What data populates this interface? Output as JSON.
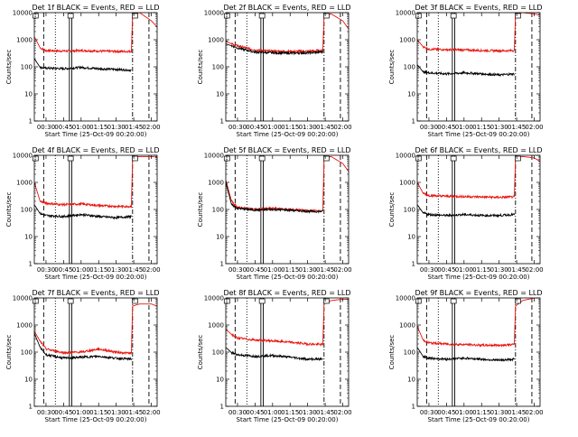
{
  "colors": {
    "events": "#000000",
    "lld": "#e8140e",
    "frame": "#000000"
  },
  "shared": {
    "ylabel": "Counts/sec",
    "xlabel": "Start Time (25-Oct-09 00:20:00)",
    "y_ticks": [
      {
        "value": 1,
        "label": "1"
      },
      {
        "value": 10,
        "label": "10"
      },
      {
        "value": 100,
        "label": "100"
      },
      {
        "value": 1000,
        "label": "1000"
      },
      {
        "value": 10000,
        "label": "10000"
      }
    ],
    "x_ticks": [
      "00:30",
      "00:45",
      "01:00",
      "01:15",
      "01:30",
      "01:45",
      "02:00"
    ]
  },
  "chart_data": [
    {
      "type": "line",
      "title": "Det 1f BLACK = Events, RED = LLD",
      "xlabel": "Start Time (25-Oct-09 00:20:00)",
      "ylabel": "Counts/sec",
      "ylim": [
        1,
        10000
      ],
      "yscale": "log",
      "xlim": [
        "00:20",
        "02:05"
      ],
      "x": [
        "00:20",
        "00:25",
        "00:30",
        "00:45",
        "01:00",
        "01:15",
        "01:30",
        "01:43",
        "01:44",
        "01:50",
        "02:00",
        "02:05"
      ],
      "series": [
        {
          "name": "RED = LLD",
          "values": [
            1300,
            500,
            400,
            380,
            400,
            380,
            370,
            370,
            9000,
            10000,
            5000,
            3000
          ]
        },
        {
          "name": "BLACK = Events",
          "values": [
            200,
            95,
            90,
            85,
            95,
            85,
            80,
            75,
            null,
            null,
            null,
            null
          ]
        }
      ]
    },
    {
      "type": "line",
      "title": "Det 2f BLACK = Events, RED = LLD",
      "xlabel": "Start Time (25-Oct-09 00:20:00)",
      "ylabel": "Counts/sec",
      "ylim": [
        1,
        10000
      ],
      "yscale": "log",
      "xlim": [
        "00:20",
        "02:05"
      ],
      "x": [
        "00:20",
        "00:25",
        "00:30",
        "00:45",
        "01:00",
        "01:15",
        "01:30",
        "01:43",
        "01:44",
        "01:50",
        "02:00",
        "02:05"
      ],
      "series": [
        {
          "name": "RED = LLD",
          "values": [
            900,
            700,
            600,
            420,
            380,
            370,
            380,
            400,
            8000,
            9000,
            5000,
            2500
          ]
        },
        {
          "name": "BLACK = Events",
          "values": [
            700,
            600,
            500,
            350,
            330,
            320,
            330,
            350,
            null,
            null,
            null,
            null
          ]
        }
      ]
    },
    {
      "type": "line",
      "title": "Det 3f BLACK = Events, RED = LLD",
      "xlabel": "Start Time (25-Oct-09 00:20:00)",
      "ylabel": "Counts/sec",
      "ylim": [
        1,
        10000
      ],
      "yscale": "log",
      "xlim": [
        "00:20",
        "02:05"
      ],
      "x": [
        "00:20",
        "00:25",
        "00:30",
        "00:45",
        "01:00",
        "01:15",
        "01:30",
        "01:43",
        "01:44",
        "01:50",
        "02:00",
        "02:05"
      ],
      "series": [
        {
          "name": "RED = LLD",
          "values": [
            1000,
            550,
            450,
            430,
            420,
            400,
            390,
            400,
            9000,
            10000,
            9000,
            8000
          ]
        },
        {
          "name": "BLACK = Events",
          "values": [
            120,
            65,
            60,
            55,
            60,
            55,
            50,
            55,
            null,
            null,
            null,
            null
          ]
        }
      ]
    },
    {
      "type": "line",
      "title": "Det 4f BLACK = Events, RED = LLD",
      "xlabel": "Start Time (25-Oct-09 00:20:00)",
      "ylabel": "Counts/sec",
      "ylim": [
        1,
        10000
      ],
      "yscale": "log",
      "xlim": [
        "00:20",
        "02:05"
      ],
      "x": [
        "00:20",
        "00:25",
        "00:30",
        "00:45",
        "01:00",
        "01:15",
        "01:30",
        "01:43",
        "01:44",
        "01:50",
        "02:00",
        "02:05"
      ],
      "series": [
        {
          "name": "RED = LLD",
          "values": [
            1000,
            200,
            170,
            150,
            160,
            140,
            130,
            130,
            8000,
            9000,
            9000,
            8500
          ]
        },
        {
          "name": "BLACK = Events",
          "values": [
            150,
            70,
            60,
            55,
            65,
            55,
            50,
            55,
            null,
            null,
            null,
            null
          ]
        }
      ]
    },
    {
      "type": "line",
      "title": "Det 5f BLACK = Events, RED = LLD",
      "xlabel": "Start Time (25-Oct-09 00:20:00)",
      "ylabel": "Counts/sec",
      "ylim": [
        1,
        10000
      ],
      "yscale": "log",
      "xlim": [
        "00:20",
        "02:05"
      ],
      "x": [
        "00:20",
        "00:25",
        "00:30",
        "00:45",
        "01:00",
        "01:15",
        "01:30",
        "01:43",
        "01:44",
        "01:50",
        "02:00",
        "02:05"
      ],
      "series": [
        {
          "name": "RED = LLD",
          "values": [
            1200,
            200,
            120,
            100,
            110,
            100,
            90,
            90,
            8000,
            9000,
            5000,
            2500
          ]
        },
        {
          "name": "BLACK = Events",
          "values": [
            1000,
            150,
            110,
            95,
            100,
            95,
            85,
            85,
            null,
            null,
            null,
            null
          ]
        }
      ]
    },
    {
      "type": "line",
      "title": "Det 6f BLACK = Events, RED = LLD",
      "xlabel": "Start Time (25-Oct-09 00:20:00)",
      "ylabel": "Counts/sec",
      "ylim": [
        1,
        10000
      ],
      "yscale": "log",
      "xlim": [
        "00:20",
        "02:05"
      ],
      "x": [
        "00:20",
        "00:25",
        "00:30",
        "00:45",
        "01:00",
        "01:15",
        "01:30",
        "01:43",
        "01:44",
        "01:50",
        "02:00",
        "02:05"
      ],
      "series": [
        {
          "name": "RED = LLD",
          "values": [
            1000,
            400,
            330,
            310,
            300,
            290,
            280,
            290,
            8000,
            9000,
            8000,
            6000
          ]
        },
        {
          "name": "BLACK = Events",
          "values": [
            150,
            75,
            65,
            60,
            65,
            60,
            60,
            65,
            null,
            null,
            null,
            null
          ]
        }
      ]
    },
    {
      "type": "line",
      "title": "Det 7f BLACK = Events, RED = LLD",
      "xlabel": "Start Time (25-Oct-09 00:20:00)",
      "ylabel": "Counts/sec",
      "ylim": [
        1,
        10000
      ],
      "yscale": "log",
      "xlim": [
        "00:20",
        "02:05"
      ],
      "x": [
        "00:20",
        "00:25",
        "00:30",
        "00:45",
        "01:00",
        "01:15",
        "01:30",
        "01:43",
        "01:44",
        "01:50",
        "02:00",
        "02:05"
      ],
      "series": [
        {
          "name": "RED = LLD",
          "values": [
            600,
            250,
            130,
            95,
            100,
            130,
            100,
            90,
            5000,
            6000,
            6000,
            5000
          ]
        },
        {
          "name": "BLACK = Events",
          "values": [
            500,
            150,
            80,
            60,
            65,
            70,
            60,
            55,
            null,
            null,
            null,
            null
          ]
        }
      ]
    },
    {
      "type": "line",
      "title": "Det 8f BLACK = Events, RED = LLD",
      "xlabel": "Start Time (25-Oct-09 00:20:00)",
      "ylabel": "Counts/sec",
      "ylim": [
        1,
        10000
      ],
      "yscale": "log",
      "xlim": [
        "00:20",
        "02:05"
      ],
      "x": [
        "00:20",
        "00:25",
        "00:30",
        "00:45",
        "01:00",
        "01:15",
        "01:30",
        "01:43",
        "01:44",
        "01:50",
        "02:00",
        "02:05"
      ],
      "series": [
        {
          "name": "RED = LLD",
          "values": [
            700,
            450,
            330,
            280,
            260,
            230,
            200,
            190,
            6000,
            8000,
            9000,
            9000
          ]
        },
        {
          "name": "BLACK = Events",
          "values": [
            150,
            95,
            80,
            70,
            75,
            65,
            55,
            55,
            null,
            null,
            null,
            null
          ]
        }
      ]
    },
    {
      "type": "line",
      "title": "Det 9f BLACK = Events, RED = LLD",
      "xlabel": "Start Time (25-Oct-09 00:20:00)",
      "ylabel": "Counts/sec",
      "ylim": [
        1,
        10000
      ],
      "yscale": "log",
      "xlim": [
        "00:20",
        "02:05"
      ],
      "x": [
        "00:20",
        "00:25",
        "00:30",
        "00:45",
        "01:00",
        "01:15",
        "01:30",
        "01:43",
        "01:44",
        "01:50",
        "02:00",
        "02:05"
      ],
      "series": [
        {
          "name": "RED = LLD",
          "values": [
            900,
            280,
            220,
            200,
            190,
            180,
            180,
            190,
            5000,
            8000,
            10000,
            10000
          ]
        },
        {
          "name": "BLACK = Events",
          "values": [
            150,
            70,
            60,
            55,
            60,
            55,
            50,
            55,
            null,
            null,
            null,
            null
          ]
        }
      ]
    }
  ]
}
